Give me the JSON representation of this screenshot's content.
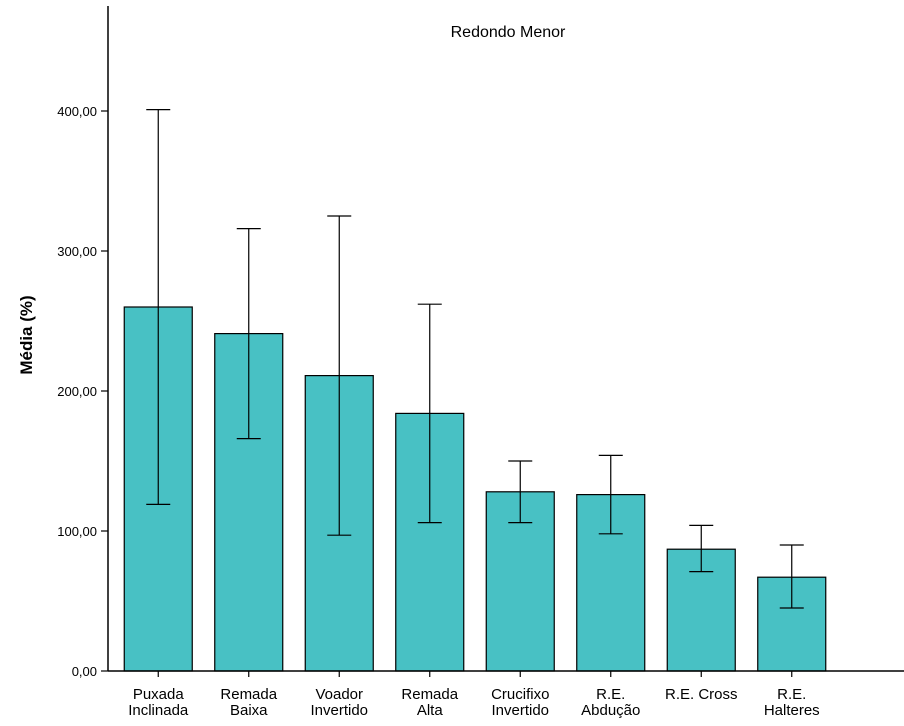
{
  "chart_data": {
    "type": "bar",
    "title": "Redondo Menor",
    "xlabel": "",
    "ylabel": "Média (%)",
    "ylim": [
      0,
      400
    ],
    "yticks": [
      0,
      100,
      200,
      300,
      400
    ],
    "ytick_labels": [
      "0,00",
      "100,00",
      "200,00",
      "300,00",
      "400,00"
    ],
    "grid": false,
    "bar_color": "#48c1c4",
    "categories": [
      [
        "Puxada",
        "Inclinada"
      ],
      [
        "Remada",
        "Baixa"
      ],
      [
        "Voador",
        "Invertido"
      ],
      [
        "Remada",
        "Alta"
      ],
      [
        "Crucifixo",
        "Invertido"
      ],
      [
        "R.E.",
        "Abdução"
      ],
      [
        "R.E. Cross"
      ],
      [
        "R.E.",
        "Halteres"
      ]
    ],
    "values": [
      260,
      241,
      211,
      184,
      128,
      126,
      87,
      67
    ],
    "error_low": [
      119,
      166,
      97,
      106,
      106,
      98,
      71,
      45
    ],
    "error_high": [
      401,
      316,
      325,
      262,
      150,
      154,
      104,
      90
    ]
  }
}
